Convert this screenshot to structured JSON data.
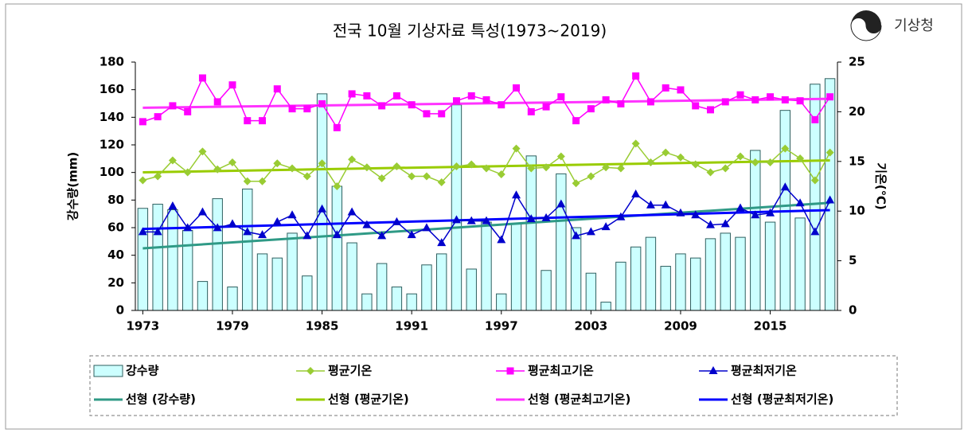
{
  "chart_data": {
    "type": "bar",
    "title": "전국 10월 기상자료 특성(1973~2019)",
    "logo": "기상청",
    "y_label": "강수량(mm)",
    "y2_label": "기온(℃)",
    "x": [
      1973,
      1974,
      1975,
      1976,
      1977,
      1978,
      1979,
      1980,
      1981,
      1982,
      1983,
      1984,
      1985,
      1986,
      1987,
      1988,
      1989,
      1990,
      1991,
      1992,
      1993,
      1994,
      1995,
      1996,
      1997,
      1998,
      1999,
      2000,
      2001,
      2002,
      2003,
      2004,
      2005,
      2006,
      2007,
      2008,
      2009,
      2010,
      2011,
      2012,
      2013,
      2014,
      2015,
      2016,
      2017,
      2018,
      2019
    ],
    "xlim": [
      1972.5,
      2019.5
    ],
    "xticks": [
      1973,
      1979,
      1985,
      1991,
      1997,
      2003,
      2009,
      2015
    ],
    "ylim": [
      0,
      180
    ],
    "yticks": [
      0,
      20,
      40,
      60,
      80,
      100,
      120,
      140,
      160,
      180
    ],
    "y2lim": [
      0,
      25
    ],
    "y2ticks": [
      0,
      5,
      10,
      15,
      20,
      25
    ],
    "series": [
      {
        "name": "강수량",
        "type": "bar",
        "color": "#ccffff",
        "stroke": "#2f5f5f",
        "values": [
          74,
          77,
          73,
          58,
          21,
          81,
          17,
          88,
          41,
          38,
          56,
          25,
          157,
          90,
          49,
          12,
          34,
          17,
          12,
          33,
          41,
          149,
          30,
          64,
          12,
          63,
          112,
          29,
          99,
          60,
          27,
          6,
          35,
          46,
          53,
          32,
          41,
          38,
          52,
          56,
          53,
          116,
          64,
          145,
          67,
          164,
          168
        ]
      },
      {
        "name": "평균기온",
        "type": "line",
        "axis": "y2",
        "color": "#99cc33",
        "marker": "diamond",
        "values": [
          13.1,
          13.5,
          15.1,
          13.9,
          16.0,
          14.2,
          14.9,
          13.0,
          13.0,
          14.8,
          14.3,
          13.5,
          14.8,
          12.5,
          15.2,
          14.4,
          13.3,
          14.5,
          13.5,
          13.5,
          12.9,
          14.5,
          14.7,
          14.3,
          13.7,
          16.3,
          14.3,
          14.4,
          15.5,
          12.8,
          13.5,
          14.4,
          14.3,
          16.8,
          14.9,
          15.9,
          15.4,
          14.7,
          13.9,
          14.3,
          15.5,
          14.9,
          14.9,
          16.3,
          15.3,
          13.1,
          15.9
        ]
      },
      {
        "name": "평균최고기온",
        "type": "line",
        "axis": "y2",
        "color": "#ff00ff",
        "marker": "square",
        "values": [
          19.0,
          19.5,
          20.6,
          20.0,
          23.4,
          21.0,
          22.7,
          19.1,
          19.1,
          22.3,
          20.3,
          20.3,
          20.8,
          18.4,
          21.8,
          21.6,
          20.6,
          21.6,
          20.7,
          19.8,
          19.8,
          21.1,
          21.6,
          21.2,
          20.7,
          22.4,
          20.0,
          20.5,
          21.5,
          19.1,
          20.3,
          21.2,
          20.8,
          23.6,
          21.0,
          22.4,
          22.2,
          20.6,
          20.2,
          21.0,
          21.7,
          21.2,
          21.5,
          21.2,
          21.1,
          19.2,
          21.5
        ]
      },
      {
        "name": "평균최저기온",
        "type": "line",
        "axis": "y2",
        "color": "#0000cc",
        "marker": "triangle",
        "values": [
          7.9,
          7.9,
          10.5,
          8.3,
          9.9,
          8.3,
          8.7,
          7.9,
          7.6,
          8.9,
          9.6,
          7.5,
          10.2,
          7.6,
          9.9,
          8.6,
          7.5,
          8.9,
          7.6,
          8.3,
          6.8,
          9.1,
          9.0,
          9.0,
          7.1,
          11.6,
          9.2,
          9.3,
          10.7,
          7.5,
          7.9,
          8.4,
          9.4,
          11.7,
          10.6,
          10.6,
          9.8,
          9.6,
          8.6,
          8.7,
          10.3,
          9.6,
          9.8,
          12.4,
          10.8,
          7.9,
          11.1
        ]
      },
      {
        "name": "선형 (강수량)",
        "type": "trend",
        "color": "#2f9a86",
        "x": [
          1973,
          2019
        ],
        "values": [
          45,
          78
        ]
      },
      {
        "name": "선형 (평균기온)",
        "type": "trend",
        "axis": "y2",
        "color": "#99cc00",
        "x": [
          1973,
          2019
        ],
        "values": [
          13.9,
          15.1
        ]
      },
      {
        "name": "선형 (평균최고기온)",
        "type": "trend",
        "axis": "y2",
        "color": "#ff33ff",
        "x": [
          1973,
          2019
        ],
        "values": [
          20.4,
          21.3
        ]
      },
      {
        "name": "선형 (평균최저기온)",
        "type": "trend",
        "axis": "y2",
        "color": "#0000ff",
        "x": [
          1973,
          2019
        ],
        "values": [
          8.2,
          10.1
        ]
      }
    ]
  }
}
